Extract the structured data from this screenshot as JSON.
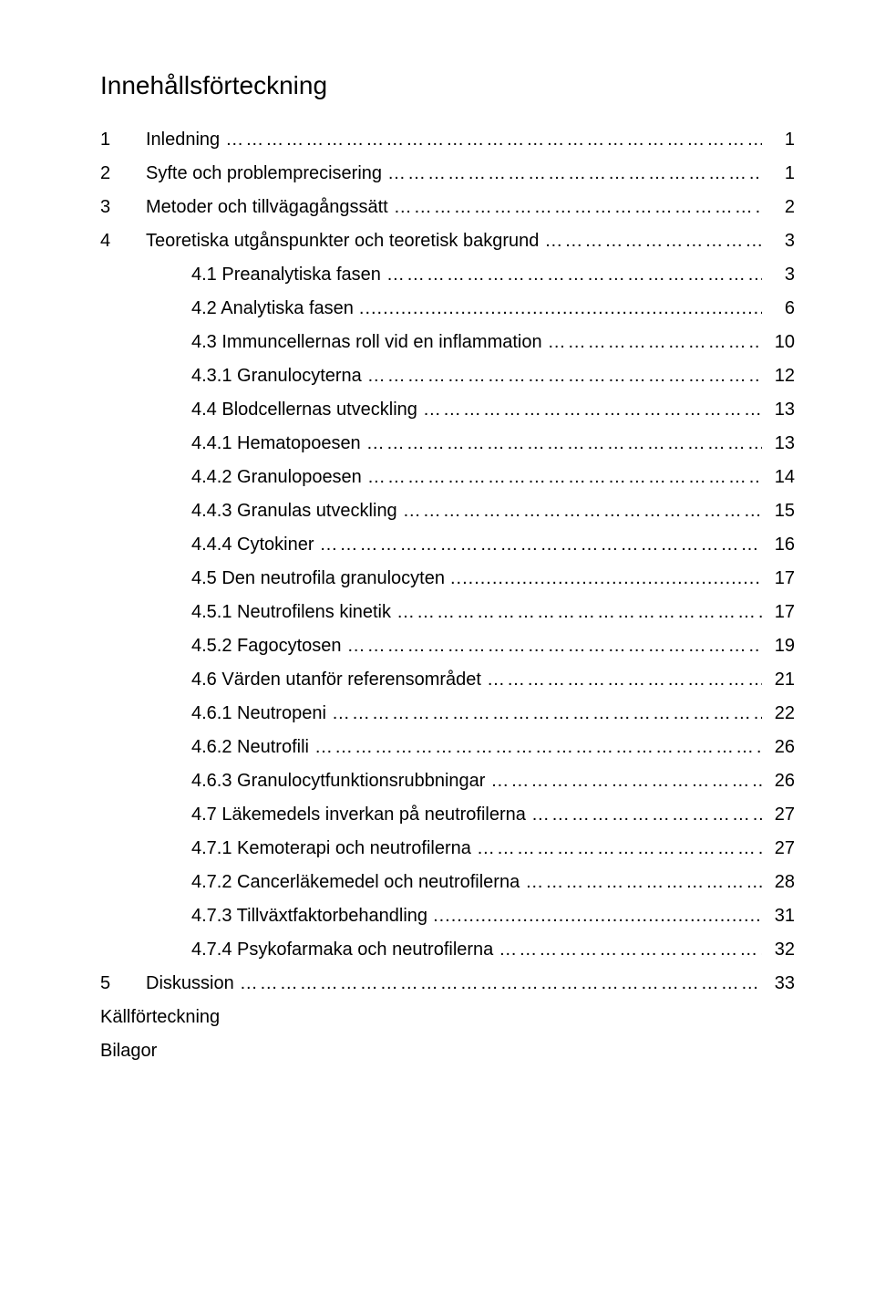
{
  "title": "Innehållsförteckning",
  "entries": [
    {
      "num": "1",
      "label": "Inledning",
      "page": "1",
      "indent": 0,
      "leader": "dotted"
    },
    {
      "num": "2",
      "label": "Syfte och problemprecisering",
      "page": "1",
      "indent": 0,
      "leader": "dotted"
    },
    {
      "num": "3",
      "label": "Metoder och tillvägagångssätt",
      "page": "2",
      "indent": 0,
      "leader": "dotted"
    },
    {
      "num": "4",
      "label": "Teoretiska utgånspunkter och teoretisk bakgrund",
      "page": "3",
      "indent": 0,
      "leader": "dotted"
    },
    {
      "num": "",
      "label": "4.1 Preanalytiska fasen",
      "page": "3",
      "indent": 1,
      "leader": "dotted"
    },
    {
      "num": "",
      "label": "4.2 Analytiska fasen",
      "page": "6",
      "indent": 1,
      "leader": "dots"
    },
    {
      "num": "",
      "label": "4.3 Immuncellernas roll vid en inflammation",
      "page": "10",
      "indent": 1,
      "leader": "dotted"
    },
    {
      "num": "",
      "label": "4.3.1 Granulocyterna",
      "page": "12",
      "indent": 2,
      "leader": "dotted"
    },
    {
      "num": "",
      "label": "4.4 Blodcellernas utveckling",
      "page": "13",
      "indent": 1,
      "leader": "dotted"
    },
    {
      "num": "",
      "label": "4.4.1 Hematopoesen",
      "page": "13",
      "indent": 2,
      "leader": "dotted"
    },
    {
      "num": "",
      "label": "4.4.2 Granulopoesen",
      "page": "14",
      "indent": 2,
      "leader": "dotted"
    },
    {
      "num": "",
      "label": "4.4.3 Granulas utveckling",
      "page": "15",
      "indent": 2,
      "leader": "dotted"
    },
    {
      "num": "",
      "label": "4.4.4 Cytokiner",
      "page": "16",
      "indent": 2,
      "leader": "dotted"
    },
    {
      "num": "",
      "label": "4.5 Den neutrofila granulocyten",
      "page": "17",
      "indent": 1,
      "leader": "dots"
    },
    {
      "num": "",
      "label": "4.5.1 Neutrofilens kinetik",
      "page": "17",
      "indent": 2,
      "leader": "dotted"
    },
    {
      "num": "",
      "label": "4.5.2 Fagocytosen",
      "page": "19",
      "indent": 2,
      "leader": "dotted"
    },
    {
      "num": "",
      "label": "4.6 Värden utanför referensområdet",
      "page": "21",
      "indent": 1,
      "leader": "dotted"
    },
    {
      "num": "",
      "label": "4.6.1 Neutropeni",
      "page": "22",
      "indent": 2,
      "leader": "dotted"
    },
    {
      "num": "",
      "label": "4.6.2 Neutrofili",
      "page": "26",
      "indent": 2,
      "leader": "dotted"
    },
    {
      "num": "",
      "label": "4.6.3 Granulocytfunktionsrubbningar",
      "page": "26",
      "indent": 2,
      "leader": "dotted"
    },
    {
      "num": "",
      "label": "4.7 Läkemedels inverkan på neutrofilerna",
      "page": "27",
      "indent": 1,
      "leader": "dotted"
    },
    {
      "num": "",
      "label": "4.7.1 Kemoterapi och neutrofilerna",
      "page": "27",
      "indent": 2,
      "leader": "dotted"
    },
    {
      "num": "",
      "label": "4.7.2 Cancerläkemedel och neutrofilerna",
      "page": "28",
      "indent": 2,
      "leader": "dotted"
    },
    {
      "num": "",
      "label": "4.7.3 Tillväxtfaktorbehandling",
      "page": "31",
      "indent": 2,
      "leader": "dots"
    },
    {
      "num": "",
      "label": "4.7.4 Psykofarmaka och neutrofilerna",
      "page": "32",
      "indent": 2,
      "leader": "dotted"
    },
    {
      "num": "5",
      "label": "Diskussion",
      "page": "33",
      "indent": 0,
      "leader": "dotted"
    }
  ],
  "bottom": [
    {
      "label": "Källförteckning"
    },
    {
      "label": "Bilagor"
    }
  ]
}
